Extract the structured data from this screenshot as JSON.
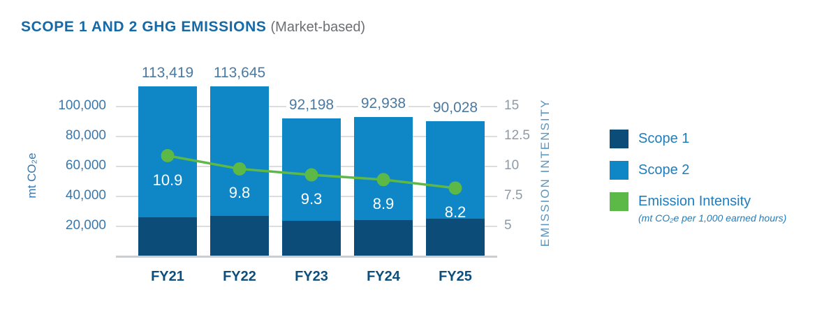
{
  "title": {
    "main": "SCOPE 1 AND 2 GHG EMISSIONS",
    "suffix": "(Market-based)"
  },
  "colors": {
    "title_blue": "#1569a7",
    "title_suffix_gray": "#6d6e71",
    "scope1": "#0c4c78",
    "scope2": "#0f86c5",
    "intensity_green": "#5cb948",
    "left_tick_blue": "#3a77ab",
    "right_tick_gray": "#8d9aa6",
    "total_label_blue": "#4a79a1",
    "x_label_blue": "#0d4e7c",
    "emission_axis_blue": "#5796c2",
    "legend_text_blue": "#1f7dbd",
    "gridline": "#dadedf",
    "baseline": "#c9ced2"
  },
  "legend": [
    {
      "label": "Scope 1",
      "swatch": "scope1"
    },
    {
      "label": "Scope 2",
      "swatch": "scope2"
    },
    {
      "label": "Emission Intensity",
      "swatch": "intensity_green",
      "sublabel": "(mt CO₂e per 1,000 earned hours)"
    }
  ],
  "chart_data": {
    "type": "bar",
    "subtype": "stacked-bar-with-line",
    "title": "SCOPE 1 AND 2 GHG EMISSIONS (Market-based)",
    "categories": [
      "FY21",
      "FY22",
      "FY23",
      "FY24",
      "FY25"
    ],
    "series": [
      {
        "name": "Scope 1",
        "type": "bar",
        "stack": "ghg",
        "values_estimated": [
          26000,
          27000,
          23600,
          24100,
          25000
        ]
      },
      {
        "name": "Scope 2",
        "type": "bar",
        "stack": "ghg",
        "values_estimated": [
          87419,
          86645,
          68598,
          68838,
          65028
        ]
      },
      {
        "name": "Emission Intensity",
        "type": "line",
        "values": [
          10.9,
          9.8,
          9.3,
          8.9,
          8.2
        ],
        "value_labels": [
          "10.9",
          "9.8",
          "9.3",
          "8.9",
          "8.2"
        ]
      }
    ],
    "totals": [
      113419,
      113645,
      92198,
      92938,
      90028
    ],
    "total_labels": [
      "113,419",
      "113,645",
      "92,198",
      "92,938",
      "90,028"
    ],
    "left_axis": {
      "label": "mt CO₂e",
      "ticks": [
        20000,
        40000,
        60000,
        80000,
        100000
      ],
      "tick_labels": [
        "20,000",
        "40,000",
        "60,000",
        "80,000",
        "100,000"
      ],
      "range": [
        0,
        115000
      ]
    },
    "right_axis": {
      "label": "EMISSION INTENSITY",
      "ticks": [
        5,
        7.5,
        10,
        12.5,
        15
      ],
      "tick_labels": [
        "5",
        "7.5",
        "10",
        "12.5",
        "15"
      ],
      "value_at_baseline": 2.5,
      "range": [
        2.5,
        16.5
      ]
    },
    "legend_position": "right",
    "grid": true
  }
}
